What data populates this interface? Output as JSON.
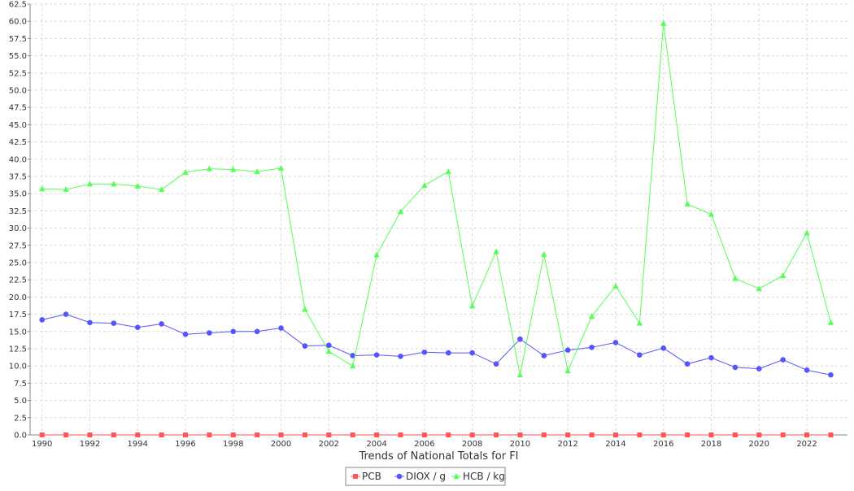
{
  "chart_data": {
    "type": "line",
    "title": "",
    "xlabel": "Trends of National Totals for FI",
    "ylabel": "",
    "x": [
      1990,
      1991,
      1992,
      1993,
      1994,
      1995,
      1996,
      1997,
      1998,
      1999,
      2000,
      2001,
      2002,
      2003,
      2004,
      2005,
      2006,
      2007,
      2008,
      2009,
      2010,
      2011,
      2012,
      2013,
      2014,
      2015,
      2016,
      2017,
      2018,
      2019,
      2020,
      2021,
      2022,
      2023
    ],
    "xlim": [
      1989.5,
      2023.7
    ],
    "ylim": [
      0,
      62.5
    ],
    "x_ticks": [
      "1990",
      "1992",
      "1994",
      "1996",
      "1998",
      "2000",
      "2002",
      "2004",
      "2006",
      "2008",
      "2010",
      "2012",
      "2014",
      "2016",
      "2018",
      "2020",
      "2022"
    ],
    "y_ticks": [
      "0.0",
      "2.5",
      "5.0",
      "7.5",
      "10.0",
      "12.5",
      "15.0",
      "17.5",
      "20.0",
      "22.5",
      "25.0",
      "27.5",
      "30.0",
      "32.5",
      "35.0",
      "37.5",
      "40.0",
      "42.5",
      "45.0",
      "47.5",
      "50.0",
      "52.5",
      "55.0",
      "57.5",
      "60.0",
      "62.5"
    ],
    "grid": true,
    "legend_placement": "bottom-center",
    "series": [
      {
        "name": "PCB",
        "color": "#ff5555",
        "marker": "square",
        "values": [
          0,
          0,
          0,
          0,
          0,
          0,
          0,
          0,
          0,
          0,
          0,
          0,
          0,
          0,
          0,
          0,
          0,
          0,
          0,
          0,
          0,
          0,
          0,
          0,
          0,
          0,
          0,
          0,
          0,
          0,
          0,
          0,
          0,
          0
        ]
      },
      {
        "name": "DIOX / g",
        "color": "#5555ff",
        "marker": "circle",
        "values": [
          16.7,
          17.5,
          16.3,
          16.2,
          15.6,
          16.1,
          14.6,
          14.8,
          15.0,
          15.0,
          15.5,
          12.9,
          13.0,
          11.5,
          11.6,
          11.4,
          12.0,
          11.9,
          11.9,
          10.3,
          13.9,
          11.5,
          12.3,
          12.7,
          13.4,
          11.6,
          12.6,
          10.3,
          11.2,
          9.8,
          9.6,
          10.9,
          9.4,
          8.7
        ]
      },
      {
        "name": "HCB / kg",
        "color": "#55ff55",
        "marker": "triangle",
        "values": [
          35.7,
          35.6,
          36.4,
          36.4,
          36.1,
          35.6,
          38.1,
          38.6,
          38.5,
          38.2,
          38.7,
          18.2,
          12.1,
          10.0,
          26.1,
          32.4,
          36.2,
          38.2,
          18.7,
          26.6,
          8.7,
          26.2,
          9.3,
          17.2,
          21.6,
          16.2,
          59.7,
          33.5,
          32.0,
          22.7,
          21.2,
          23.1,
          29.3,
          16.3
        ]
      }
    ]
  }
}
